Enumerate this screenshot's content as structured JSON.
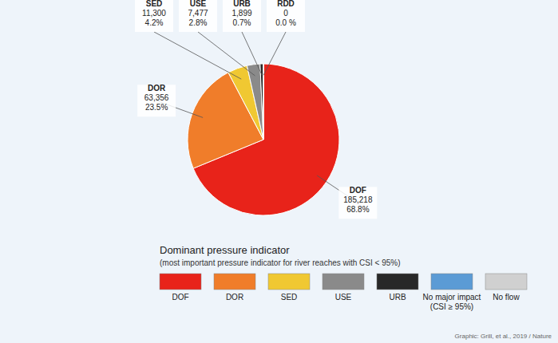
{
  "chart_data": {
    "type": "pie",
    "categories": [
      "DOF",
      "DOR",
      "SED",
      "USE",
      "URB",
      "RDD"
    ],
    "values": [
      185218,
      63356,
      11300,
      7477,
      1899,
      0
    ],
    "value_labels": [
      "185,218",
      "63,356",
      "11,300",
      "7,477",
      "1,899",
      "0"
    ],
    "percentages": [
      68.8,
      23.5,
      4.2,
      2.8,
      0.7,
      0.0
    ],
    "percentage_labels": [
      "68.8%",
      "23.5%",
      "4.2%",
      "2.8%",
      "0.7%",
      "0.0 %"
    ],
    "colors": [
      "#e8231a",
      "#f07d2a",
      "#f0c832",
      "#8a8a8a",
      "#282828",
      "#b0b0b0"
    ],
    "legend_title": "Dominant pressure indicator",
    "legend_subtitle": "(most important pressure indicator for river reaches with CSI < 95%)",
    "legend_entries": [
      {
        "name": "DOF",
        "color": "#e8231a"
      },
      {
        "name": "DOR",
        "color": "#f07d2a"
      },
      {
        "name": "SED",
        "color": "#f0c832"
      },
      {
        "name": "USE",
        "color": "#8a8a8a"
      },
      {
        "name": "URB",
        "color": "#282828"
      },
      {
        "name": "No major impact\n(CSI ≥ 95%)",
        "color": "#5b9bd5"
      },
      {
        "name": "No flow",
        "color": "#d0d0d0"
      }
    ],
    "annotations": [
      "Graphic: Grill, et al., 2019 / Nature"
    ]
  }
}
